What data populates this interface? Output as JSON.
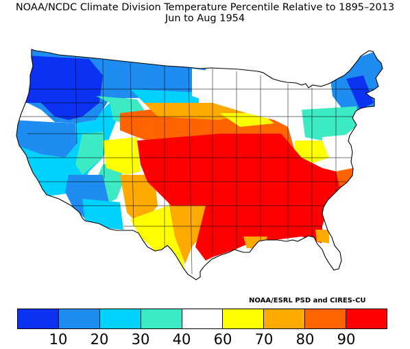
{
  "title": "NOAA/NCDC Climate Division Temperature Percentile Relative to 1895–2013",
  "subtitle": "Jun to Aug 1954",
  "credit": "NOAA/ESRL PSD and CIRES-CU",
  "legend": {
    "colors": [
      "#0a32f0",
      "#1e8cf0",
      "#00d2ff",
      "#3cebc3",
      "#ffffff",
      "#ffff00",
      "#ffaa00",
      "#ff6400",
      "#ff0000"
    ],
    "tick_labels": [
      "10",
      "20",
      "30",
      "40",
      "60",
      "70",
      "80",
      "90"
    ]
  }
}
